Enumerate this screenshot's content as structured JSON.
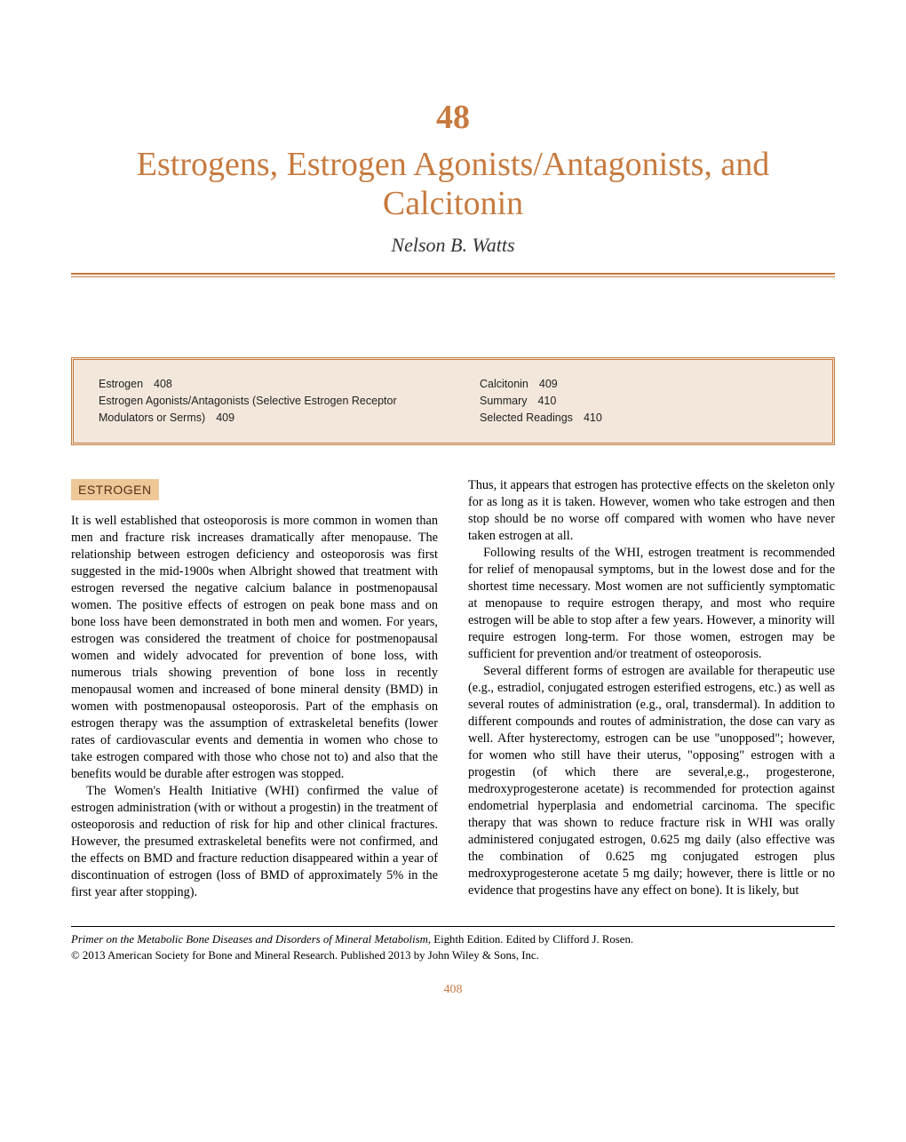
{
  "chapter": {
    "number": "48",
    "title": "Estrogens, Estrogen Agonists/Antagonists, and Calcitonin",
    "author": "Nelson B. Watts"
  },
  "colors": {
    "accent": "#c77a3f",
    "toc_bg": "#f3e7db",
    "heading_bg": "#eec797",
    "heading_text": "#5a2e18",
    "body_text": "#000000"
  },
  "toc": {
    "left": [
      {
        "label": "Estrogen",
        "page": "408"
      },
      {
        "label": "Estrogen Agonists/Antagonists (Selective Estrogen Receptor Modulators or Serms)",
        "page": "409"
      }
    ],
    "right": [
      {
        "label": "Calcitonin",
        "page": "409"
      },
      {
        "label": "Summary",
        "page": "410"
      },
      {
        "label": "Selected Readings",
        "page": "410"
      }
    ]
  },
  "section": {
    "heading": "ESTROGEN",
    "paragraphs_left": [
      "It is well established that osteoporosis is more common in women than men and fracture risk increases dramatically after menopause. The relationship between estrogen deficiency and osteoporosis was first suggested in the mid-1900s when Albright showed that treatment with estrogen reversed the negative calcium balance in postmenopausal women. The positive effects of estrogen on peak bone mass and on bone loss have been demonstrated in both men and women. For years, estrogen was considered the treatment of choice for postmenopausal women and widely advocated for prevention of bone loss, with numerous trials showing prevention of bone loss in recently menopausal women and increased of bone mineral density (BMD) in women with postmenopausal osteoporosis. Part of the emphasis on estrogen therapy was the assumption of extraskeletal benefits (lower rates of cardiovascular events and dementia in women who chose to take estrogen compared with those who chose not to) and also that the benefits would be durable after estrogen was stopped.",
      "The Women's Health Initiative (WHI) confirmed the value of estrogen administration (with or without a progestin) in the treatment of osteoporosis and reduction of risk for hip and other clinical fractures. However, the presumed extraskeletal benefits were not confirmed, and the effects on BMD and fracture reduction disappeared within a year of discontinuation of estrogen (loss of BMD of approximately 5% in the first year after stopping)."
    ],
    "paragraphs_right": [
      "Thus, it appears that estrogen has protective effects on the skeleton only for as long as it is taken. However, women who take estrogen and then stop should be no worse off compared with women who have never taken estrogen at all.",
      "Following results of the WHI, estrogen treatment is recommended for relief of menopausal symptoms, but in the lowest dose and for the shortest time necessary. Most women are not sufficiently symptomatic at menopause to require estrogen therapy, and most who require estrogen will be able to stop after a few years. However, a minority will require estrogen long-term. For those women, estrogen may be sufficient for prevention and/or treatment of osteoporosis.",
      "Several different forms of estrogen are available for therapeutic use (e.g., estradiol, conjugated estrogen esterified estrogens, etc.) as well as several routes of administration (e.g., oral, transdermal). In addition to different compounds and routes of administration, the dose can vary as well. After hysterectomy, estrogen can be use \"unopposed\"; however, for women who still have their uterus, \"opposing\" estrogen with a progestin (of which there are several,e.g., progesterone, medroxyprogesterone acetate) is recommended for protection against endometrial hyperplasia and endometrial carcinoma. The specific therapy that was shown to reduce fracture risk in WHI was orally administered conjugated estrogen, 0.625 mg daily (also effective was the combination of 0.625 mg conjugated estrogen plus medroxyprogesterone acetate 5 mg daily; however, there is little or no evidence that progestins have any effect on bone). It is likely, but"
    ]
  },
  "footer": {
    "book_title": "Primer on the Metabolic Bone Diseases and Disorders of Mineral Metabolism",
    "edition_line": ", Eighth Edition. Edited by Clifford J. Rosen.",
    "copyright": "© 2013 American Society for Bone and Mineral Research. Published 2013 by John Wiley & Sons, Inc."
  },
  "page_number": "408"
}
